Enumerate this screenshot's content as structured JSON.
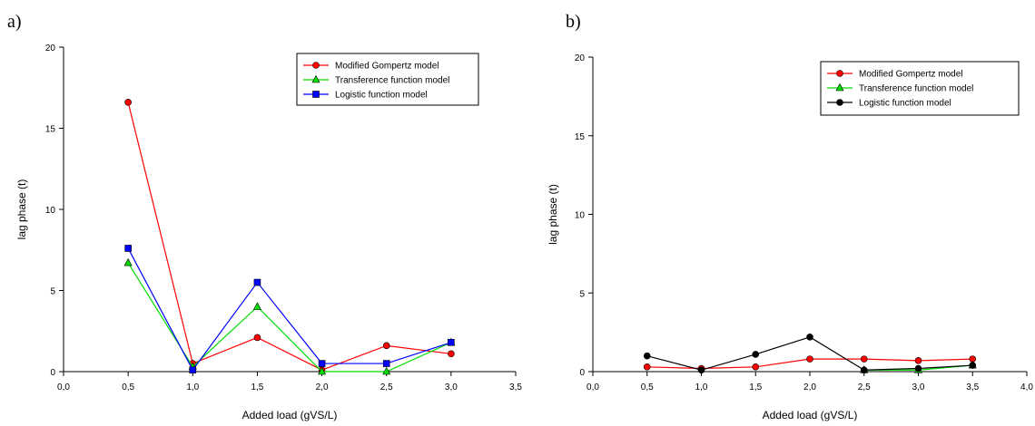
{
  "chart_data": [
    {
      "panel_label": "a)",
      "type": "line",
      "xlabel": "Added load (gVS/L)",
      "ylabel": "lag phase (t)",
      "xlim": [
        0,
        3.5
      ],
      "ylim": [
        0,
        20
      ],
      "x_ticks": [
        0,
        0.5,
        1,
        1.5,
        2,
        2.5,
        3,
        3.5
      ],
      "x_tick_labels": [
        "0,0",
        "0,5",
        "1,0",
        "1,5",
        "2,0",
        "2,5",
        "3,0",
        "3,5"
      ],
      "y_ticks": [
        0,
        5,
        10,
        15,
        20
      ],
      "y_tick_labels": [
        "0",
        "5",
        "10",
        "15",
        "20"
      ],
      "grid": false,
      "legend_position": "top-right",
      "series": [
        {
          "name": "Modified Gompertz model",
          "color": "#ff0000",
          "marker": "circle",
          "x": [
            0.5,
            1.0,
            1.5,
            2.0,
            2.5,
            3.0
          ],
          "y": [
            16.6,
            0.5,
            2.1,
            0.1,
            1.6,
            1.1
          ]
        },
        {
          "name": "Transference function model",
          "color": "#00dd00",
          "marker": "triangle",
          "x": [
            0.5,
            1.0,
            1.5,
            2.0,
            2.5,
            3.0
          ],
          "y": [
            6.7,
            0.3,
            4.0,
            0.0,
            0.0,
            1.8
          ]
        },
        {
          "name": "Logistic function model",
          "color": "#0000ff",
          "marker": "square",
          "x": [
            0.5,
            1.0,
            1.5,
            2.0,
            2.5,
            3.0
          ],
          "y": [
            7.6,
            0.1,
            5.5,
            0.5,
            0.5,
            1.8
          ]
        }
      ]
    },
    {
      "panel_label": "b)",
      "type": "line",
      "xlabel": "Added load (gVS/L)",
      "ylabel": "lag phase (t)",
      "xlim": [
        0,
        4
      ],
      "ylim": [
        0,
        20
      ],
      "x_ticks": [
        0,
        0.5,
        1,
        1.5,
        2,
        2.5,
        3,
        3.5,
        4
      ],
      "x_tick_labels": [
        "0,0",
        "0,5",
        "1,0",
        "1,5",
        "2,0",
        "2,5",
        "3,0",
        "3,5",
        "4,0"
      ],
      "y_ticks": [
        0,
        5,
        10,
        15,
        20
      ],
      "y_tick_labels": [
        "0",
        "5",
        "10",
        "15",
        "20"
      ],
      "grid": false,
      "legend_position": "top-right",
      "series": [
        {
          "name": "Modified Gompertz model",
          "color": "#ff0000",
          "marker": "circle",
          "x": [
            0.5,
            1.0,
            1.5,
            2.0,
            2.5,
            3.0,
            3.5
          ],
          "y": [
            0.3,
            0.2,
            0.3,
            0.8,
            0.8,
            0.7,
            0.8
          ]
        },
        {
          "name": "Transference function model",
          "color": "#00dd00",
          "marker": "triangle",
          "x": [
            2.5,
            3.0,
            3.5
          ],
          "y": [
            0.1,
            0.1,
            0.4
          ]
        },
        {
          "name": "Logistic function model",
          "color": "#000000",
          "marker": "circle",
          "x": [
            0.5,
            1.0,
            1.5,
            2.0,
            2.5,
            3.0,
            3.5
          ],
          "y": [
            1.0,
            0.1,
            1.1,
            2.2,
            0.1,
            0.2,
            0.4
          ]
        }
      ]
    }
  ]
}
